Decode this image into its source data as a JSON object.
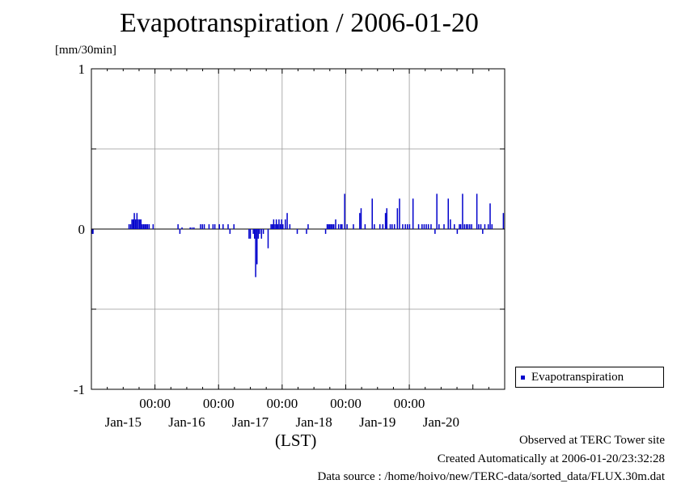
{
  "title": "Evapotranspiration / 2006-01-20",
  "units": "[mm/30min]",
  "legend": {
    "label": "Evapotranspiration",
    "color": "#0000cc"
  },
  "x_axis": {
    "label": "(LST)",
    "time_labels": [
      "00:00",
      "00:00",
      "00:00",
      "00:00",
      "00:00"
    ],
    "date_labels": [
      "Jan-15",
      "Jan-16",
      "Jan-17",
      "Jan-18",
      "Jan-19",
      "Jan-20"
    ]
  },
  "footer": {
    "line1": "Observed at TERC Tower site",
    "line2": "Created Automatically at 2006-01-20/23:32:28",
    "line3": "Data source : /home/hoivo/new/TERC-data/sorted_data/FLUX.30m.dat"
  },
  "chart_data": {
    "type": "bar",
    "title": "Evapotranspiration / 2006-01-20",
    "ylabel": "[mm/30min]",
    "xlabel": "(LST)",
    "ylim": [
      -1,
      1
    ],
    "yticks": [
      "1",
      "0",
      "-1"
    ],
    "grid": true,
    "legend_position": "right",
    "series": [
      {
        "name": "Evapotranspiration",
        "color": "#0000cc",
        "points": [
          [
            0.3,
            -0.03
          ],
          [
            0.6,
            -0.03
          ],
          [
            14.2,
            0.03
          ],
          [
            14.8,
            0.03
          ],
          [
            15.3,
            0.06
          ],
          [
            15.8,
            0.06
          ],
          [
            16.2,
            0.1
          ],
          [
            16.7,
            0.06
          ],
          [
            17.2,
            0.1
          ],
          [
            17.7,
            0.06
          ],
          [
            18.2,
            0.06
          ],
          [
            18.7,
            0.06
          ],
          [
            19.2,
            0.03
          ],
          [
            19.7,
            0.03
          ],
          [
            20.2,
            0.03
          ],
          [
            20.7,
            0.03
          ],
          [
            21.2,
            0.03
          ],
          [
            21.8,
            0.03
          ],
          [
            23.3,
            0.03
          ],
          [
            32.7,
            0.03
          ],
          [
            33.4,
            -0.03
          ],
          [
            34.2,
            0.01
          ],
          [
            37.3,
            0.01
          ],
          [
            38.0,
            0.01
          ],
          [
            38.7,
            0.01
          ],
          [
            41.2,
            0.03
          ],
          [
            41.9,
            0.03
          ],
          [
            42.6,
            0.03
          ],
          [
            44.4,
            0.03
          ],
          [
            45.9,
            0.03
          ],
          [
            46.6,
            0.03
          ],
          [
            48.3,
            0.03
          ],
          [
            49.7,
            0.03
          ],
          [
            51.6,
            0.03
          ],
          [
            52.3,
            -0.03
          ],
          [
            53.8,
            0.03
          ],
          [
            59.5,
            -0.06
          ],
          [
            60.0,
            -0.06
          ],
          [
            61.1,
            -0.03
          ],
          [
            61.6,
            -0.06
          ],
          [
            62.0,
            -0.3
          ],
          [
            62.5,
            -0.22
          ],
          [
            63.0,
            -0.06
          ],
          [
            63.5,
            -0.03
          ],
          [
            64.2,
            -0.06
          ],
          [
            64.9,
            -0.03
          ],
          [
            66.7,
            -0.12
          ],
          [
            67.8,
            0.03
          ],
          [
            68.3,
            0.03
          ],
          [
            68.8,
            0.06
          ],
          [
            69.3,
            0.03
          ],
          [
            69.8,
            0.06
          ],
          [
            70.3,
            0.03
          ],
          [
            70.8,
            0.06
          ],
          [
            71.3,
            0.03
          ],
          [
            71.8,
            0.06
          ],
          [
            72.3,
            0.03
          ],
          [
            73.2,
            0.06
          ],
          [
            73.9,
            0.1
          ],
          [
            74.9,
            0.03
          ],
          [
            77.7,
            -0.03
          ],
          [
            81.2,
            -0.03
          ],
          [
            81.8,
            0.03
          ],
          [
            88.4,
            -0.03
          ],
          [
            89.0,
            0.03
          ],
          [
            89.5,
            0.03
          ],
          [
            90.0,
            0.03
          ],
          [
            90.5,
            0.03
          ],
          [
            91.0,
            0.03
          ],
          [
            91.5,
            0.03
          ],
          [
            92.2,
            0.06
          ],
          [
            93.3,
            0.03
          ],
          [
            94.1,
            0.03
          ],
          [
            94.6,
            0.03
          ],
          [
            95.6,
            0.22
          ],
          [
            96.5,
            0.03
          ],
          [
            98.9,
            0.03
          ],
          [
            101.3,
            0.1
          ],
          [
            101.8,
            0.13
          ],
          [
            103.3,
            0.03
          ],
          [
            106.0,
            0.19
          ],
          [
            106.8,
            0.03
          ],
          [
            108.9,
            0.03
          ],
          [
            110.0,
            0.03
          ],
          [
            111.0,
            0.1
          ],
          [
            111.5,
            0.13
          ],
          [
            112.8,
            0.03
          ],
          [
            113.5,
            0.03
          ],
          [
            114.4,
            0.03
          ],
          [
            115.5,
            0.13
          ],
          [
            116.3,
            0.19
          ],
          [
            117.5,
            0.03
          ],
          [
            118.5,
            0.03
          ],
          [
            119.3,
            0.03
          ],
          [
            120.1,
            0.03
          ],
          [
            121.4,
            0.19
          ],
          [
            123.5,
            0.03
          ],
          [
            124.8,
            0.03
          ],
          [
            125.6,
            0.03
          ],
          [
            126.4,
            0.03
          ],
          [
            127.2,
            0.03
          ],
          [
            128.2,
            0.03
          ],
          [
            129.7,
            -0.03
          ],
          [
            130.4,
            0.22
          ],
          [
            131.2,
            0.03
          ],
          [
            133.1,
            0.03
          ],
          [
            134.7,
            0.19
          ],
          [
            135.5,
            0.06
          ],
          [
            137.0,
            0.03
          ],
          [
            138.1,
            -0.03
          ],
          [
            138.9,
            0.03
          ],
          [
            139.4,
            0.03
          ],
          [
            140.1,
            0.22
          ],
          [
            140.8,
            0.03
          ],
          [
            141.5,
            0.03
          ],
          [
            142.1,
            0.03
          ],
          [
            142.8,
            0.03
          ],
          [
            143.5,
            0.03
          ],
          [
            145.5,
            0.22
          ],
          [
            146.2,
            0.03
          ],
          [
            147.0,
            0.03
          ],
          [
            147.7,
            -0.03
          ],
          [
            148.5,
            0.03
          ],
          [
            149.8,
            0.03
          ],
          [
            150.5,
            0.16
          ],
          [
            151.2,
            0.03
          ],
          [
            155.5,
            0.1
          ]
        ]
      }
    ],
    "x_range_hours": [
      0,
      156
    ]
  }
}
